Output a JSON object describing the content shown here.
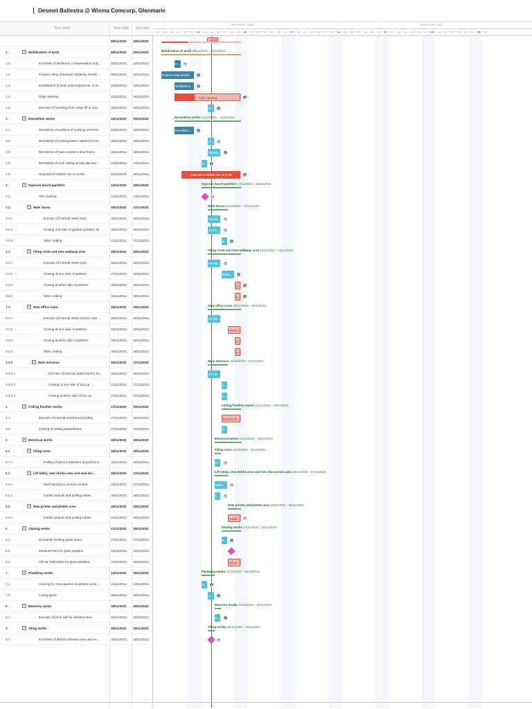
{
  "project": {
    "title": "Desmet Ballestra @ Wisma Comcorp, Glenmarie"
  },
  "grid": {
    "headers": {
      "name": "Task name",
      "start": "Start date",
      "end": "End date"
    },
    "project_row": {
      "start": "08/11/2022",
      "end": "19/11/2022"
    },
    "rows": [
      {
        "wbs": "1",
        "name": "Mobilisation of work",
        "start": "08/11/2022",
        "end": "19/11/2022",
        "bold": true,
        "level": 0,
        "collapse": true
      },
      {
        "wbs": "1.1",
        "name": "Purchase of Workmen Compensation and ...",
        "start": "10/11/2022",
        "end": "10/11/2022",
        "level": 1
      },
      {
        "wbs": "1.2",
        "name": "Produce shop drawings/ carpentry details ...",
        "start": "08/11/2022",
        "end": "12/11/2022",
        "level": 1
      },
      {
        "wbs": "1.3",
        "name": "Mobilisation of tools and equipments, ie sc...",
        "start": "10/11/2022",
        "end": "12/11/2022",
        "level": 1
      },
      {
        "wbs": "1.4",
        "name": "Daily cleaning",
        "start": "10/11/2022",
        "end": "19/11/2022",
        "level": 1
      },
      {
        "wbs": "1.5",
        "name": "Erection of hoarding from cargo lift to mai...",
        "start": "15/11/2022",
        "end": "15/11/2022",
        "level": 1
      },
      {
        "wbs": "2",
        "name": "Demolition works",
        "start": "10/11/2022",
        "end": "19/11/2022",
        "bold": true,
        "level": 0,
        "collapse": true
      },
      {
        "wbs": "2.1",
        "name": "Demolition of partition of existing conferen...",
        "start": "10/11/2022",
        "end": "12/11/2022",
        "level": 1
      },
      {
        "wbs": "2.2",
        "name": "Demolition of existing lower cabinet in fron...",
        "start": "15/11/2022",
        "end": "15/11/2022",
        "level": 1
      },
      {
        "wbs": "2.3",
        "name": "Demolition of main entrance door frame",
        "start": "15/11/2022",
        "end": "16/11/2022",
        "level": 1
      },
      {
        "wbs": "2.4",
        "name": "Demolition of 2'x4' ceiling at new lab and ...",
        "start": "14/11/2022",
        "end": "14/11/2022",
        "level": 1
      },
      {
        "wbs": "2.5",
        "name": "Disposal of rubbish into ro-ro bin",
        "start": "11/11/2022",
        "end": "19/11/2022",
        "level": 1
      },
      {
        "wbs": "3",
        "name": "Gypsum board partition",
        "start": "14/11/2022",
        "end": "19/11/2022",
        "bold": true,
        "level": 0,
        "collapse": true
      },
      {
        "wbs": "3.1",
        "name": "Site marking",
        "start": "14/11/2022",
        "end": "14/11/2022",
        "level": 1
      },
      {
        "wbs": "3.2",
        "name": "Male Surau",
        "start": "15/11/2022",
        "end": "17/11/2022",
        "bold": true,
        "level": 1,
        "collapse": true
      },
      {
        "wbs": "3.2.1",
        "name": "Erection of internal metal stud",
        "start": "15/11/2022",
        "end": "16/11/2022",
        "level": 2
      },
      {
        "wbs": "3.2.2",
        "name": "Closing one side of gypsum partition for ...",
        "start": "15/11/2022",
        "end": "16/11/2022",
        "level": 2
      },
      {
        "wbs": "3.2.3",
        "name": "Skim coating",
        "start": "17/11/2022",
        "end": "17/11/2022",
        "level": 2
      },
      {
        "wbs": "3.3",
        "name": "Filing room and new walkway area",
        "start": "15/11/2022",
        "end": "19/11/2022",
        "bold": true,
        "level": 1,
        "collapse": true
      },
      {
        "wbs": "3.3.1",
        "name": "Erection of internal metal stud",
        "start": "15/11/2022",
        "end": "16/11/2022",
        "level": 2
      },
      {
        "wbs": "3.3.2",
        "name": "Closing of one side of partition",
        "start": "17/11/2022",
        "end": "18/11/2022",
        "level": 2
      },
      {
        "wbs": "3.3.3",
        "name": "Closing another side of partition",
        "start": "19/11/2022",
        "end": "19/11/2022",
        "level": 2
      },
      {
        "wbs": "3.3.4",
        "name": "Skim coating",
        "start": "19/11/2022",
        "end": "19/11/2022",
        "level": 2
      },
      {
        "wbs": "3.4",
        "name": "New office room",
        "start": "15/11/2022",
        "end": "19/11/2022",
        "bold": true,
        "level": 1,
        "collapse": true
      },
      {
        "wbs": "3.4.1",
        "name": "Erection of internal metal stud for new ...",
        "start": "15/11/2022",
        "end": "16/11/2022",
        "level": 2
      },
      {
        "wbs": "3.4.2",
        "name": "Closing of one side of partition",
        "start": "18/11/2022",
        "end": "19/11/2022",
        "level": 2
      },
      {
        "wbs": "3.4.3",
        "name": "Closing another side of partition",
        "start": "19/11/2022",
        "end": "19/11/2022",
        "level": 2
      },
      {
        "wbs": "3.4.4",
        "name": "Skim coating",
        "start": "19/11/2022",
        "end": "19/11/2022",
        "level": 2
      },
      {
        "wbs": "3.4.5",
        "name": "Main entrance",
        "start": "15/11/2022",
        "end": "17/11/2022",
        "bold": true,
        "level": 2,
        "collapse": true
      },
      {
        "wbs": "3.4.5.1",
        "name": "Erection of internal metal stud for bo...",
        "start": "15/11/2022",
        "end": "16/11/2022",
        "level": 3
      },
      {
        "wbs": "3.4.5.2",
        "name": "Closing of one side of box up",
        "start": "17/11/2022",
        "end": "17/11/2022",
        "level": 3
      },
      {
        "wbs": "3.4.5.3",
        "name": "Closing another side of box up",
        "start": "17/11/2022",
        "end": "17/11/2022",
        "level": 3
      },
      {
        "wbs": "4",
        "name": "Ceiling finishes works",
        "start": "17/11/2022",
        "end": "19/11/2022",
        "bold": true,
        "level": 0,
        "collapse": true
      },
      {
        "wbs": "4.1",
        "name": "Erection of internal metal stud at lobby",
        "start": "17/11/2022",
        "end": "19/11/2022",
        "level": 1
      },
      {
        "wbs": "4.2",
        "name": "Closing of ceiling plasterboard",
        "start": "17/11/2022",
        "end": "17/11/2022",
        "level": 1
      },
      {
        "wbs": "5",
        "name": "Electrical works",
        "start": "16/11/2022",
        "end": "19/11/2022",
        "bold": true,
        "level": 0,
        "collapse": true
      },
      {
        "wbs": "5.1",
        "name": "Filing room",
        "start": "16/11/2022",
        "end": "16/11/2022",
        "bold": true,
        "level": 1,
        "collapse": true
      },
      {
        "wbs": "5.1.1",
        "name": "Pulling of wires in between drywall for p...",
        "start": "16/11/2022",
        "end": "16/11/2022",
        "level": 2
      },
      {
        "wbs": "5.2",
        "name": "Lift lobby, new drinks area and new dis...",
        "start": "16/11/2022",
        "end": "17/11/2022",
        "bold": true,
        "level": 1,
        "collapse": true
      },
      {
        "wbs": "5.2.1",
        "name": "Wall hacking to receive conduit",
        "start": "16/11/2022",
        "end": "17/11/2022",
        "level": 2
      },
      {
        "wbs": "5.2.2",
        "name": "Install conduits and pulling cables",
        "start": "16/11/2022",
        "end": "16/11/2022",
        "level": 2
      },
      {
        "wbs": "5.3",
        "name": "New printer and plotter area",
        "start": "18/11/2022",
        "end": "19/11/2022",
        "bold": true,
        "level": 1,
        "collapse": true
      },
      {
        "wbs": "5.3.1",
        "name": "Install conduits and pulling cables",
        "start": "18/11/2022",
        "end": "19/11/2022",
        "level": 2
      },
      {
        "wbs": "6",
        "name": "Glazing works",
        "start": "17/11/2022",
        "end": "19/11/2022",
        "bold": true,
        "level": 0,
        "collapse": true
      },
      {
        "wbs": "6.1",
        "name": "Dismantle existing glass doors",
        "start": "17/11/2022",
        "end": "17/11/2022",
        "level": 1
      },
      {
        "wbs": "6.2",
        "name": "Measurement for glass partition",
        "start": "18/11/2022",
        "end": "18/11/2022",
        "level": 1
      },
      {
        "wbs": "6.3",
        "name": "Off site fabrication for glass partition",
        "start": "18/11/2022",
        "end": "19/11/2022",
        "level": 1
      },
      {
        "wbs": "7",
        "name": "Plumbing works",
        "start": "14/11/2022",
        "end": "15/11/2022",
        "bold": true,
        "level": 0,
        "collapse": true
      },
      {
        "wbs": "7.1",
        "name": "Hacking for new pipeline to ablution area ...",
        "start": "14/11/2022",
        "end": "14/11/2022",
        "level": 1
      },
      {
        "wbs": "7.2",
        "name": "Laying pipes",
        "start": "15/11/2022",
        "end": "15/11/2022",
        "level": 1
      },
      {
        "wbs": "8",
        "name": "Masonry works",
        "start": "16/11/2022",
        "end": "16/11/2022",
        "bold": true,
        "level": 0,
        "collapse": true
      },
      {
        "wbs": "8.1",
        "name": "Erection of brick wall for ablution area",
        "start": "16/11/2022",
        "end": "16/11/2022",
        "level": 1
      },
      {
        "wbs": "9",
        "name": "Tiling works",
        "start": "15/11/2022",
        "end": "15/11/2022",
        "bold": true,
        "level": 0,
        "collapse": true
      },
      {
        "wbs": "9.1",
        "name": "Purchase of tiles for ablution area and ne...",
        "start": "15/11/2022",
        "end": "15/11/2022",
        "level": 1
      }
    ]
  },
  "timeline": {
    "months": [
      {
        "label": "November 2022"
      },
      {
        "label": "December 2022"
      }
    ],
    "days": [
      "07",
      "08",
      "09",
      "10",
      "11",
      "12",
      "13",
      "14",
      "15",
      "16",
      "17",
      "18",
      "19",
      "20",
      "21",
      "22",
      "23",
      "24",
      "25",
      "26",
      "27",
      "28",
      "29",
      "30",
      "01",
      "02",
      "03",
      "04",
      "05",
      "06",
      "07",
      "08",
      "09",
      "10",
      "11",
      "12",
      "13",
      "14",
      "15",
      "16",
      "17",
      "18",
      "19",
      "20",
      "21",
      "22",
      "23",
      "24",
      "25",
      "26"
    ],
    "sunday_labels": [
      "13",
      "20",
      "27",
      "04",
      "11",
      "18",
      "25"
    ],
    "today_label": "Today",
    "tasks": [
      {
        "type": "project"
      },
      {
        "type": "summary",
        "label": "Mobilisation of work",
        "dates": "08/11/2022 - 19/11/2022",
        "s": 1,
        "d": 12,
        "color": "#e3a33a"
      },
      {
        "type": "bar",
        "label": "P...",
        "s": 3,
        "d": 1,
        "style": "dblue",
        "avatar": "light"
      },
      {
        "type": "bar",
        "label": "Produce shop drawin...",
        "s": 1,
        "d": 5,
        "style": "dblue",
        "avatar": "dark"
      },
      {
        "type": "bar",
        "label": "Mobilisation ...",
        "s": 3,
        "d": 3,
        "style": "dblue",
        "avatar": "dark"
      },
      {
        "type": "bar",
        "label": "Daily cleaning",
        "s": 3,
        "d": 10,
        "style": "redpink",
        "avatar": "dark"
      },
      {
        "type": "bar",
        "label": "Er...",
        "s": 8,
        "d": 1,
        "style": "blue",
        "avatar": "dark"
      },
      {
        "type": "summary",
        "label": "Demolition works",
        "dates": "10/11/2022 - 19/11/2022",
        "s": 3,
        "d": 10
      },
      {
        "type": "bar",
        "label": "Demolition ...",
        "s": 3,
        "d": 3,
        "style": "dblue",
        "avatar": "dark"
      },
      {
        "type": "bar",
        "label": "D...",
        "s": 8,
        "d": 1,
        "style": "blue",
        "avatar": "light"
      },
      {
        "type": "bar",
        "label": "Demoli...",
        "s": 8,
        "d": 2,
        "style": "blue",
        "avatar": "dark"
      },
      {
        "type": "bar",
        "label": "D...",
        "s": 7,
        "d": 1,
        "style": "blue",
        "avatar": "dark"
      },
      {
        "type": "bar",
        "label": "Disposal of rubbish into ro-ro bin",
        "s": 4,
        "d": 9,
        "style": "red",
        "avatar": "dark"
      },
      {
        "type": "summary",
        "label": "Gypsum board partition",
        "dates": "14/11/2022 - 19/11/2022",
        "s": 7,
        "d": 6
      },
      {
        "type": "milestone",
        "s": 7,
        "avatar": "light"
      },
      {
        "type": "summary",
        "label": "Male Surau",
        "dates": "15/11/2022 - 17/11/2022",
        "s": 8,
        "d": 3
      },
      {
        "type": "bar",
        "label": "Erectio...",
        "s": 8,
        "d": 2,
        "style": "blue",
        "avatar": "light"
      },
      {
        "type": "bar",
        "label": "Closin...",
        "s": 8,
        "d": 2,
        "style": "blue",
        "avatar": "light"
      },
      {
        "type": "bar",
        "label": "S...",
        "s": 10,
        "d": 1,
        "style": "blue",
        "avatar": "dark"
      },
      {
        "type": "summary",
        "label": "Filing room and new walkway area",
        "dates": "15/11/2022 - 19/11/2022",
        "s": 8,
        "d": 5
      },
      {
        "type": "bar",
        "label": "Erectio...",
        "s": 8,
        "d": 2,
        "style": "blue",
        "avatar": "light"
      },
      {
        "type": "bar",
        "label": "Closin...",
        "s": 10,
        "d": 2,
        "style": "blue",
        "avatar": "dark"
      },
      {
        "type": "bar",
        "label": "C...",
        "s": 12,
        "d": 1,
        "style": "pink",
        "avatar": "dark"
      },
      {
        "type": "bar",
        "label": "S...",
        "s": 12,
        "d": 1,
        "style": "pink",
        "avatar": "dark"
      },
      {
        "type": "summary",
        "label": "New office room",
        "dates": "15/11/2022 - 19/11/2022",
        "s": 8,
        "d": 5
      },
      {
        "type": "bar",
        "label": "Erectio...",
        "s": 8,
        "d": 2,
        "style": "blue"
      },
      {
        "type": "bar",
        "label": "Closin...",
        "s": 11,
        "d": 2,
        "style": "pink"
      },
      {
        "type": "bar",
        "label": "C...",
        "s": 12,
        "d": 1,
        "style": "pink"
      },
      {
        "type": "bar",
        "label": "S...",
        "s": 12,
        "d": 1,
        "style": "pink"
      },
      {
        "type": "summary",
        "label": "Main entrance",
        "dates": "15/11/2022 - 17/11/2022",
        "s": 8,
        "d": 3
      },
      {
        "type": "bar",
        "label": "Erectio...",
        "s": 8,
        "d": 2,
        "style": "blue"
      },
      {
        "type": "bar",
        "label": "C...",
        "s": 10,
        "d": 1,
        "style": "blue"
      },
      {
        "type": "bar",
        "label": "C...",
        "s": 10,
        "d": 1,
        "style": "blue"
      },
      {
        "type": "summary",
        "label": "Ceiling finishes works",
        "dates": "17/11/2022 - 19/11/2022",
        "s": 10,
        "d": 3
      },
      {
        "type": "bar",
        "label": "Erection of ...",
        "s": 10,
        "d": 3,
        "style": "pink"
      },
      {
        "type": "bar",
        "label": "C...",
        "s": 10,
        "d": 1,
        "style": "blue"
      },
      {
        "type": "summary",
        "label": "Electrical works",
        "dates": "16/11/2022 - 19/11/2022",
        "s": 9,
        "d": 4
      },
      {
        "type": "summary",
        "label": "Filing room",
        "dates": "16/11/2022 - 16/11/2022",
        "s": 9,
        "d": 1
      },
      {
        "type": "bar",
        "label": "P...",
        "s": 9,
        "d": 1,
        "style": "blue",
        "avatar": "light"
      },
      {
        "type": "summary",
        "label": "Lift lobby, new drinks area and new discussion area",
        "dates": "16/11/2022 - 17/11/2022",
        "s": 9,
        "d": 2
      },
      {
        "type": "bar",
        "label": "Wall h...",
        "s": 9,
        "d": 2,
        "style": "blue",
        "avatar": "light"
      },
      {
        "type": "bar",
        "label": "I...",
        "s": 9,
        "d": 1,
        "style": "blue",
        "avatar": "light"
      },
      {
        "type": "summary",
        "label": "New printer and plotter area",
        "dates": "18/11/2022 - 19/11/2022",
        "s": 11,
        "d": 2
      },
      {
        "type": "bar",
        "label": "Install ...",
        "s": 11,
        "d": 2,
        "style": "pink",
        "avatar": "light"
      },
      {
        "type": "summary",
        "label": "Glazing works",
        "dates": "17/11/2022 - 19/11/2022",
        "s": 10,
        "d": 3
      },
      {
        "type": "bar",
        "label": "D...",
        "s": 10,
        "d": 1,
        "style": "blue",
        "avatar": "dark"
      },
      {
        "type": "milestone",
        "s": 11
      },
      {
        "type": "bar",
        "label": "Off sit...",
        "s": 11,
        "d": 2,
        "style": "pink"
      },
      {
        "type": "summary",
        "label": "Plumbing works",
        "dates": "14/11/2022 - 15/11/2022",
        "s": 7,
        "d": 2
      },
      {
        "type": "bar",
        "label": "H...",
        "s": 7,
        "d": 1,
        "style": "blue",
        "avatar": "dark"
      },
      {
        "type": "bar",
        "label": "L...",
        "s": 8,
        "d": 1,
        "style": "blue",
        "avatar": "dark"
      },
      {
        "type": "summary",
        "label": "Masonry works",
        "dates": "16/11/2022 - 16/11/2022",
        "s": 9,
        "d": 1
      },
      {
        "type": "bar",
        "label": "E...",
        "s": 9,
        "d": 1,
        "style": "blue",
        "avatar": "dark"
      },
      {
        "type": "summary",
        "label": "Tiling works",
        "dates": "15/11/2022 - 15/11/2022",
        "s": 8,
        "d": 1
      },
      {
        "type": "milestone",
        "s": 8,
        "avatar": "light"
      }
    ]
  },
  "colors": {
    "accent": "#4ec3d9",
    "summary": "#58b368",
    "critical": "#e74c3c",
    "milestone": "#d94fb1"
  }
}
